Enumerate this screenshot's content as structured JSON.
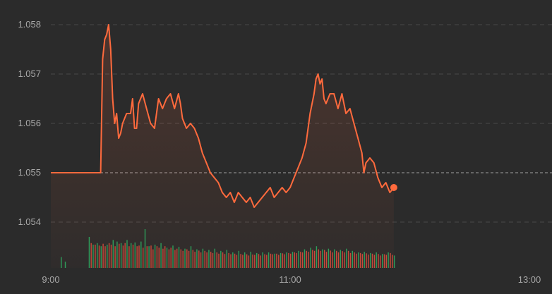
{
  "colors": {
    "background": "#2b2b2b",
    "grid": "#4a4a4a",
    "baseline": "#7a7a7a",
    "price_line": "#ff6a3d",
    "area_fill": "#ff6a3d",
    "tick_text": "#a8a8a8",
    "volume_up": "#2e9e5b",
    "volume_down": "#c94a3a"
  },
  "chart_data": {
    "type": "line",
    "title": "",
    "xlabel": "",
    "ylabel": "",
    "x_ticks": [
      "9:00",
      "11:00",
      "13:00"
    ],
    "y_ticks": [
      "1.058",
      "1.057",
      "1.056",
      "1.055",
      "1.054"
    ],
    "ylim": [
      1.0535,
      1.0583
    ],
    "xlim_minutes": [
      0,
      240
    ],
    "reference_price": 1.055,
    "grid": true,
    "legend": "none",
    "series": [
      {
        "values": [
          [
            0,
            1.055
          ],
          [
            7,
            1.055
          ],
          [
            14,
            1.055
          ],
          [
            21,
            1.055
          ],
          [
            25,
            1.055
          ],
          [
            26,
            1.0573
          ],
          [
            27,
            1.0577
          ],
          [
            28,
            1.0578
          ],
          [
            29,
            1.058
          ],
          [
            30,
            1.0575
          ],
          [
            31,
            1.0565
          ],
          [
            32,
            1.056
          ],
          [
            33,
            1.0562
          ],
          [
            34,
            1.0557
          ],
          [
            35,
            1.0558
          ],
          [
            36,
            1.056
          ],
          [
            38,
            1.0562
          ],
          [
            40,
            1.0562
          ],
          [
            41,
            1.0565
          ],
          [
            42,
            1.0559
          ],
          [
            43,
            1.0559
          ],
          [
            44,
            1.0564
          ],
          [
            45,
            1.0565
          ],
          [
            46,
            1.0566
          ],
          [
            48,
            1.0563
          ],
          [
            50,
            1.056
          ],
          [
            52,
            1.0559
          ],
          [
            54,
            1.0565
          ],
          [
            56,
            1.0563
          ],
          [
            58,
            1.0565
          ],
          [
            60,
            1.0566
          ],
          [
            62,
            1.0563
          ],
          [
            64,
            1.0566
          ],
          [
            65,
            1.0564
          ],
          [
            66,
            1.0561
          ],
          [
            68,
            1.0559
          ],
          [
            70,
            1.056
          ],
          [
            72,
            1.0559
          ],
          [
            74,
            1.0557
          ],
          [
            76,
            1.0554
          ],
          [
            78,
            1.0552
          ],
          [
            80,
            1.055
          ],
          [
            82,
            1.0549
          ],
          [
            84,
            1.0548
          ],
          [
            86,
            1.0546
          ],
          [
            88,
            1.0545
          ],
          [
            90,
            1.0546
          ],
          [
            92,
            1.0544
          ],
          [
            94,
            1.0546
          ],
          [
            96,
            1.0545
          ],
          [
            98,
            1.0544
          ],
          [
            100,
            1.0545
          ],
          [
            102,
            1.0543
          ],
          [
            104,
            1.0544
          ],
          [
            106,
            1.0545
          ],
          [
            108,
            1.0546
          ],
          [
            110,
            1.0547
          ],
          [
            112,
            1.0545
          ],
          [
            114,
            1.0546
          ],
          [
            116,
            1.0547
          ],
          [
            118,
            1.0546
          ],
          [
            120,
            1.0547
          ],
          [
            122,
            1.0549
          ],
          [
            124,
            1.0551
          ],
          [
            126,
            1.0553
          ],
          [
            128,
            1.0556
          ],
          [
            130,
            1.0562
          ],
          [
            132,
            1.0566
          ],
          [
            133,
            1.0569
          ],
          [
            134,
            1.057
          ],
          [
            135,
            1.0568
          ],
          [
            136,
            1.0569
          ],
          [
            137,
            1.0565
          ],
          [
            138,
            1.0564
          ],
          [
            140,
            1.0566
          ],
          [
            142,
            1.0566
          ],
          [
            144,
            1.0563
          ],
          [
            146,
            1.0566
          ],
          [
            148,
            1.0562
          ],
          [
            150,
            1.0563
          ],
          [
            152,
            1.056
          ],
          [
            154,
            1.0557
          ],
          [
            156,
            1.0554
          ],
          [
            157,
            1.055
          ],
          [
            158,
            1.0552
          ],
          [
            160,
            1.0553
          ],
          [
            162,
            1.0552
          ],
          [
            164,
            1.0549
          ],
          [
            166,
            1.0547
          ],
          [
            168,
            1.0548
          ],
          [
            170,
            1.0546
          ],
          [
            172,
            1.0547
          ]
        ]
      }
    ],
    "volume": {
      "up": [
        [
          5,
          0.35
        ],
        [
          7,
          0.2
        ],
        [
          19,
          1.0
        ],
        [
          21,
          0.75
        ],
        [
          23,
          0.8
        ],
        [
          25,
          0.7
        ],
        [
          28,
          0.75
        ],
        [
          31,
          0.9
        ],
        [
          33,
          0.85
        ],
        [
          35,
          0.8
        ],
        [
          38,
          0.9
        ],
        [
          40,
          0.8
        ],
        [
          42,
          0.82
        ],
        [
          45,
          0.85
        ],
        [
          47,
          1.25
        ],
        [
          49,
          0.7
        ],
        [
          52,
          0.75
        ],
        [
          55,
          0.8
        ],
        [
          58,
          0.65
        ],
        [
          61,
          0.72
        ],
        [
          64,
          0.68
        ],
        [
          67,
          0.62
        ],
        [
          70,
          0.7
        ],
        [
          73,
          0.6
        ],
        [
          76,
          0.62
        ],
        [
          79,
          0.58
        ],
        [
          82,
          0.62
        ],
        [
          85,
          0.55
        ],
        [
          88,
          0.58
        ],
        [
          91,
          0.5
        ],
        [
          94,
          0.55
        ],
        [
          97,
          0.5
        ],
        [
          100,
          0.52
        ],
        [
          103,
          0.48
        ],
        [
          106,
          0.5
        ],
        [
          109,
          0.5
        ],
        [
          112,
          0.46
        ],
        [
          115,
          0.48
        ],
        [
          118,
          0.5
        ],
        [
          121,
          0.52
        ],
        [
          124,
          0.55
        ],
        [
          127,
          0.6
        ],
        [
          130,
          0.65
        ],
        [
          133,
          0.7
        ],
        [
          136,
          0.6
        ],
        [
          139,
          0.62
        ],
        [
          142,
          0.6
        ],
        [
          145,
          0.58
        ],
        [
          148,
          0.62
        ],
        [
          151,
          0.55
        ],
        [
          154,
          0.5
        ],
        [
          157,
          0.52
        ],
        [
          160,
          0.48
        ],
        [
          163,
          0.5
        ],
        [
          166,
          0.45
        ],
        [
          169,
          0.5
        ],
        [
          172,
          0.4
        ]
      ],
      "down": [
        [
          20,
          0.8
        ],
        [
          22,
          0.75
        ],
        [
          24,
          0.72
        ],
        [
          26,
          0.78
        ],
        [
          27,
          0.7
        ],
        [
          29,
          0.8
        ],
        [
          30,
          0.75
        ],
        [
          32,
          0.7
        ],
        [
          34,
          0.78
        ],
        [
          36,
          0.72
        ],
        [
          37,
          0.8
        ],
        [
          39,
          0.7
        ],
        [
          41,
          0.75
        ],
        [
          43,
          0.7
        ],
        [
          44,
          0.72
        ],
        [
          46,
          0.65
        ],
        [
          48,
          0.7
        ],
        [
          50,
          0.72
        ],
        [
          51,
          0.6
        ],
        [
          53,
          0.7
        ],
        [
          54,
          0.65
        ],
        [
          56,
          0.62
        ],
        [
          57,
          0.7
        ],
        [
          59,
          0.6
        ],
        [
          60,
          0.65
        ],
        [
          62,
          0.58
        ],
        [
          63,
          0.62
        ],
        [
          65,
          0.6
        ],
        [
          66,
          0.55
        ],
        [
          68,
          0.6
        ],
        [
          69,
          0.55
        ],
        [
          71,
          0.58
        ],
        [
          72,
          0.52
        ],
        [
          74,
          0.56
        ],
        [
          75,
          0.5
        ],
        [
          77,
          0.55
        ],
        [
          78,
          0.5
        ],
        [
          80,
          0.52
        ],
        [
          81,
          0.48
        ],
        [
          83,
          0.5
        ],
        [
          84,
          0.46
        ],
        [
          86,
          0.5
        ],
        [
          87,
          0.45
        ],
        [
          89,
          0.48
        ],
        [
          90,
          0.44
        ],
        [
          92,
          0.46
        ],
        [
          93,
          0.42
        ],
        [
          95,
          0.45
        ],
        [
          96,
          0.42
        ],
        [
          98,
          0.44
        ],
        [
          99,
          0.4
        ],
        [
          101,
          0.43
        ],
        [
          102,
          0.42
        ],
        [
          104,
          0.45
        ],
        [
          105,
          0.4
        ],
        [
          107,
          0.44
        ],
        [
          108,
          0.42
        ],
        [
          110,
          0.46
        ],
        [
          111,
          0.44
        ],
        [
          113,
          0.46
        ],
        [
          114,
          0.42
        ],
        [
          116,
          0.47
        ],
        [
          117,
          0.44
        ],
        [
          119,
          0.48
        ],
        [
          120,
          0.46
        ],
        [
          122,
          0.5
        ],
        [
          123,
          0.48
        ],
        [
          125,
          0.52
        ],
        [
          126,
          0.5
        ],
        [
          128,
          0.55
        ],
        [
          129,
          0.52
        ],
        [
          131,
          0.58
        ],
        [
          132,
          0.55
        ],
        [
          134,
          0.6
        ],
        [
          135,
          0.55
        ],
        [
          137,
          0.58
        ],
        [
          138,
          0.52
        ],
        [
          140,
          0.56
        ],
        [
          141,
          0.5
        ],
        [
          143,
          0.55
        ],
        [
          144,
          0.5
        ],
        [
          146,
          0.54
        ],
        [
          147,
          0.5
        ],
        [
          149,
          0.55
        ],
        [
          150,
          0.48
        ],
        [
          152,
          0.5
        ],
        [
          153,
          0.46
        ],
        [
          155,
          0.48
        ],
        [
          156,
          0.45
        ],
        [
          158,
          0.47
        ],
        [
          159,
          0.43
        ],
        [
          161,
          0.46
        ],
        [
          162,
          0.42
        ],
        [
          164,
          0.45
        ],
        [
          165,
          0.4
        ],
        [
          167,
          0.44
        ],
        [
          168,
          0.42
        ],
        [
          170,
          0.48
        ],
        [
          171,
          0.42
        ]
      ]
    }
  }
}
